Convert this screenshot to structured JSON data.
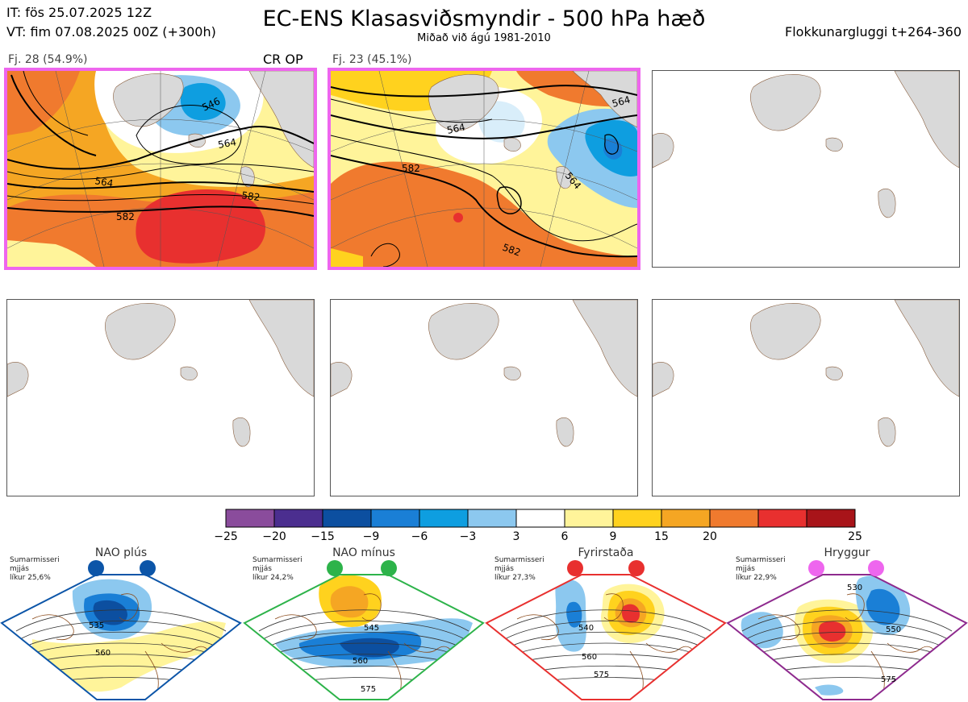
{
  "header": {
    "it": "IT: fös 25.07.2025 12Z",
    "vt": "VT: fim 07.08.2025 00Z  (+300h)",
    "title": "EC-ENS Klasasviðsmyndir - 500 hPa hæð",
    "subtitle": "Miðað við ágú 1981-2010",
    "window": "Flokkunargluggi t+264-360"
  },
  "panels": [
    {
      "label": "Fj. 28 (54.9%)",
      "tag": "CR OP",
      "highlight": "#ee66ee",
      "contours": [
        "546",
        "564",
        "564",
        "582",
        "582"
      ]
    },
    {
      "label": "Fj. 23 (45.1%)",
      "tag": "",
      "highlight": "#ee66ee",
      "contours": [
        "564",
        "564",
        "564",
        "582",
        "582"
      ]
    },
    {
      "label": "",
      "tag": ""
    },
    {
      "label": "",
      "tag": ""
    },
    {
      "label": "",
      "tag": ""
    },
    {
      "label": "",
      "tag": ""
    }
  ],
  "colorbar": {
    "colors": [
      "#8a4c9c",
      "#4b2e8f",
      "#0c4fa0",
      "#1a7fd6",
      "#0e9ee0",
      "#8cc8ef",
      "#ffffff",
      "#fff49a",
      "#ffd21e",
      "#f5a623",
      "#f07a2e",
      "#e8302f",
      "#a81419"
    ],
    "ticks": [
      "−25",
      "−20",
      "−15",
      "−9",
      "−6",
      "−3",
      "3",
      "6",
      "9",
      "15",
      "20",
      "25"
    ]
  },
  "regimes": [
    {
      "title": "NAO plús",
      "season": "Sumarmisseri",
      "smooth": "mjjás",
      "prob": "líkur 25,6%",
      "color": "#0c55a8",
      "levels": [
        "535",
        "560"
      ]
    },
    {
      "title": "NAO mínus",
      "season": "Sumarmisseri",
      "smooth": "mjjás",
      "prob": "líkur 24,2%",
      "color": "#2db34a",
      "levels": [
        "545",
        "560",
        "575"
      ]
    },
    {
      "title": "Fyrirstaða",
      "season": "Sumarmisseri",
      "smooth": "mjjás",
      "prob": "líkur 27,3%",
      "color": "#e8302f",
      "levels": [
        "540",
        "560",
        "575"
      ]
    },
    {
      "title": "Hryggur",
      "season": "Sumarmisseri",
      "smooth": "mjjás",
      "prob": "líkur 22,9%",
      "color": "#ee66ee",
      "border": "#8e2a8e",
      "levels": [
        "530",
        "550",
        "575"
      ]
    }
  ]
}
